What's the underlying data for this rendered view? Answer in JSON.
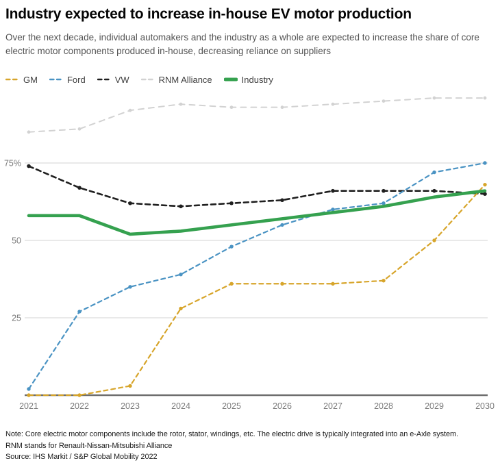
{
  "header": {
    "title": "Industry expected to increase in-house EV motor production",
    "subtitle": "Over the next decade, individual automakers and the industry as a whole are expected to increase the share of core electric motor components produced in-house, decreasing reliance on suppliers"
  },
  "chart_data": {
    "type": "line",
    "x": [
      "2021",
      "2022",
      "2023",
      "2024",
      "2025",
      "2026",
      "2027",
      "2028",
      "2029",
      "2030"
    ],
    "series": [
      {
        "name": "GM",
        "color": "#d7a52b",
        "line_style": "dashed",
        "values": [
          0,
          0,
          3,
          28,
          36,
          36,
          36,
          37,
          50,
          68
        ]
      },
      {
        "name": "Ford",
        "color": "#4a93c3",
        "line_style": "dashed",
        "values": [
          2,
          27,
          35,
          39,
          48,
          55,
          60,
          62,
          72,
          75
        ]
      },
      {
        "name": "VW",
        "color": "#1f1f1f",
        "line_style": "dashed",
        "values": [
          74,
          67,
          62,
          61,
          62,
          63,
          66,
          66,
          66,
          65
        ]
      },
      {
        "name": "RNM Alliance",
        "color": "#d2d2d2",
        "line_style": "dashed",
        "values": [
          85,
          86,
          92,
          94,
          93,
          93,
          94,
          95,
          96,
          96
        ]
      },
      {
        "name": "Industry",
        "color": "#35a14f",
        "line_style": "solid",
        "values": [
          58,
          58,
          52,
          53,
          55,
          57,
          59,
          61,
          64,
          66
        ]
      }
    ],
    "unit": "%",
    "yticks": [
      {
        "value": 75,
        "label": "75%"
      },
      {
        "value": 50,
        "label": "50"
      },
      {
        "value": 25,
        "label": "25"
      }
    ],
    "ylim": [
      0,
      98
    ],
    "grid": "horizontal",
    "legend_position": "top"
  },
  "footer": {
    "note": "Note: Core electric motor components include the rotor, stator, windings, etc. The electric drive is typically integrated into an e-Axle system.",
    "rnm_note": "RNM stands for Renault-Nissan-Mitsubishi Alliance",
    "source": "Source: IHS Markit / S&P Global Mobility 2022"
  },
  "colors": {
    "grid": "#dcdcdc",
    "axis": "#6e6e6e",
    "tick_label": "#7a7a7a",
    "subtitle": "#545454",
    "footer": "#1c1c1c"
  }
}
